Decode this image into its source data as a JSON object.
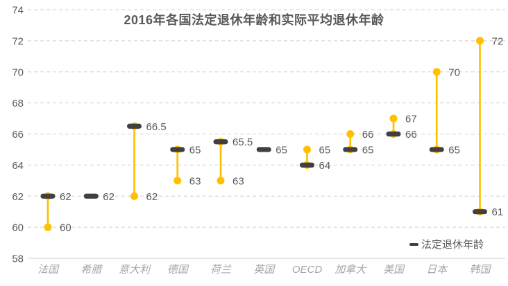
{
  "chart_data": {
    "type": "scatter",
    "subtype": "dumbbell-high-low",
    "title": "2016年各国法定退休年龄和实际平均退休年龄",
    "categories": [
      "法国",
      "希腊",
      "意大利",
      "德国",
      "荷兰",
      "英国",
      "OECD",
      "加拿大",
      "美国",
      "日本",
      "韩国"
    ],
    "series": [
      {
        "name": "法定退休年龄",
        "marker": "dash",
        "color": "#404040",
        "values": [
          62,
          62,
          66.5,
          65,
          65.5,
          65,
          64,
          65,
          66,
          65,
          61
        ]
      },
      {
        "name": "实际平均退休年龄",
        "marker": "circle",
        "color": "#FFC000",
        "values": [
          60,
          null,
          62,
          63,
          63,
          null,
          65,
          66,
          67,
          70,
          72
        ]
      }
    ],
    "ylim": [
      58,
      74
    ],
    "ytick_step": 2,
    "yticks": [
      58,
      60,
      62,
      64,
      66,
      68,
      70,
      72,
      74
    ],
    "grid": "horizontal-dashed",
    "data_labels": "right-of-marker",
    "legend": {
      "position": "bottom-right",
      "entries": [
        "法定退休年龄"
      ]
    },
    "colors": {
      "accent_gold": "#FFC000",
      "marker_dark": "#404040",
      "label_text": "#595959",
      "category_text": "#a6a6a6",
      "gridline": "#d9d9d9"
    }
  }
}
